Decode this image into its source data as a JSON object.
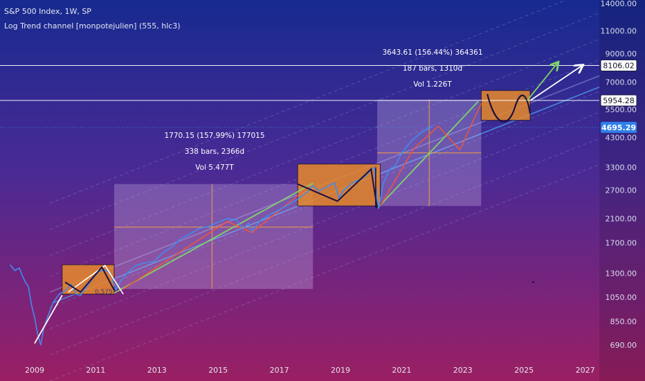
{
  "header": {
    "title": "S&P 500 Index, 1W, SP",
    "indicator": "Log Trend channel [monpotejulien] (555, hlc3)"
  },
  "chart_data": {
    "type": "line",
    "y_scale": "log",
    "ylim": [
      600,
      16500
    ],
    "xlim": [
      2008.2,
      2027.4
    ],
    "x_ticks": [
      "2009",
      "2011",
      "2013",
      "2015",
      "2017",
      "2019",
      "2021",
      "2023",
      "2025",
      "2027"
    ],
    "y_ticks": [
      "14000.00",
      "11000.00",
      "9000.00",
      "7000.00",
      "5500.00",
      "4300.00",
      "3300.00",
      "2700.00",
      "2100.00",
      "1700.00",
      "1300.00",
      "1050.00",
      "850.00",
      "690.00"
    ],
    "price_tags": [
      {
        "label": "8106.02",
        "value": 8106.02,
        "style": "outline"
      },
      {
        "label": "5954.28",
        "value": 5954.28,
        "style": "outline"
      },
      {
        "label": "4695.29",
        "value": 4695.29,
        "style": "filled"
      }
    ],
    "horizontal_lines": [
      8106.02,
      5954.28
    ],
    "series": [
      {
        "color": "#3f8cf0",
        "x": [
          2008.2,
          2008.35,
          2008.5,
          2008.6,
          2008.7,
          2008.8,
          2008.9,
          2009.0,
          2009.1,
          2009.2,
          2009.3,
          2009.45,
          2009.6,
          2009.8,
          2010.0,
          2010.2,
          2010.35,
          2010.5,
          2010.7,
          2010.9,
          2011.1,
          2011.3,
          2011.5,
          2011.65,
          2011.8,
          2012.0,
          2012.3,
          2012.6,
          2012.9,
          2013.2,
          2013.5,
          2013.8,
          2014.1,
          2014.4,
          2014.7,
          2015.0,
          2015.3,
          2015.6,
          2015.8,
          2016.0,
          2016.1,
          2016.4,
          2016.7,
          2017.0,
          2017.3,
          2017.6,
          2017.9,
          2018.1,
          2018.3,
          2018.6,
          2018.8,
          2018.95,
          2019.1,
          2019.4,
          2019.7,
          2020.0,
          2020.1,
          2020.2,
          2020.25,
          2020.4,
          2020.6,
          2020.8,
          2021.0,
          2021.3,
          2021.6,
          2021.8,
          2022.0
        ],
        "y": [
          1400,
          1330,
          1360,
          1270,
          1200,
          1150,
          980,
          880,
          760,
          690,
          800,
          900,
          1000,
          1080,
          1110,
          1180,
          1080,
          1070,
          1150,
          1240,
          1320,
          1340,
          1290,
          1120,
          1200,
          1290,
          1390,
          1420,
          1440,
          1560,
          1640,
          1770,
          1840,
          1930,
          1960,
          2040,
          2100,
          2080,
          1920,
          2020,
          1880,
          2080,
          2180,
          2270,
          2380,
          2490,
          2650,
          2810,
          2680,
          2800,
          2880,
          2520,
          2700,
          2890,
          2980,
          3220,
          3300,
          2500,
          2300,
          2880,
          3240,
          3360,
          3750,
          4150,
          4450,
          4600,
          4750
        ]
      }
    ],
    "annotations": [
      {
        "line1": "1770.15 (157.99%) 177015",
        "line2": "338 bars, 2366d",
        "line3": "Vol 5.477T"
      },
      {
        "line1": "3643.61 (156.44%) 364361",
        "line2": "187 bars, 1310d",
        "line3": "Vol 1.226T"
      }
    ],
    "small_label": "0.575",
    "colors": {
      "price": "#3f8cf0",
      "green": "#7fd36a",
      "red": "#f0553a",
      "orange_box": "#e88a2a",
      "white_arrow": "#ffffff",
      "channel": "#9aa8e8",
      "measure": "#f0a040"
    },
    "grid": false
  }
}
